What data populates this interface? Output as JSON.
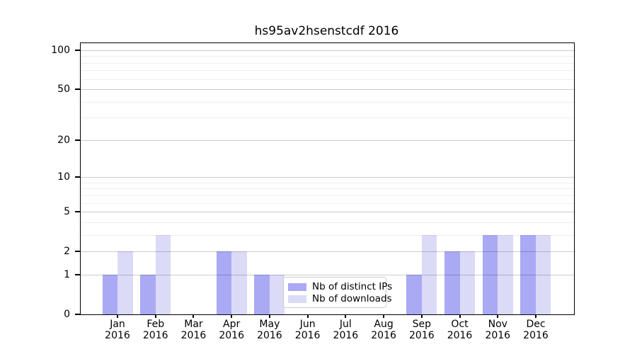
{
  "title": "hs95av2hsenstcdf 2016",
  "chart_data": {
    "type": "bar",
    "title": "hs95av2hsenstcdf 2016",
    "categories": [
      "Jan",
      "Feb",
      "Mar",
      "Apr",
      "May",
      "Jun",
      "Jul",
      "Aug",
      "Sep",
      "Oct",
      "Nov",
      "Dec"
    ],
    "year_label": "2016",
    "series": [
      {
        "name": "Nb of distinct IPs",
        "color": "#a9a9f4",
        "values": [
          1,
          1,
          0,
          2,
          1,
          0,
          0,
          0,
          1,
          2,
          3,
          3
        ]
      },
      {
        "name": "Nb of downloads",
        "color": "#dbdbf8",
        "values": [
          2,
          3,
          0,
          2,
          1,
          0,
          0,
          0,
          3,
          2,
          3,
          3
        ]
      }
    ],
    "yscale": "log1p",
    "ylim": [
      0,
      113
    ],
    "yticks": [
      0,
      1,
      2,
      5,
      10,
      20,
      50,
      100
    ],
    "minor_yticks": [
      3,
      4,
      6,
      7,
      8,
      9,
      30,
      40,
      60,
      70,
      80,
      90
    ],
    "grid": true,
    "legend_position": "lower center",
    "xlabel": "",
    "ylabel": ""
  }
}
